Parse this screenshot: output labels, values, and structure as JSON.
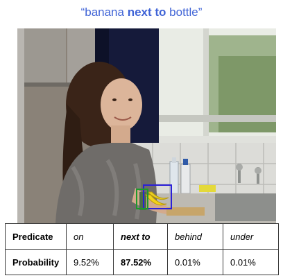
{
  "caption": {
    "open_quote": "“",
    "subject": "banana",
    "relation": "next to",
    "object": "bottle",
    "close_quote": "”"
  },
  "photo": {
    "boxes": [
      {
        "label": "banana",
        "color": "#2b1fd8"
      },
      {
        "label": "bottle",
        "color": "#1d9a2b"
      }
    ]
  },
  "table": {
    "row_headers": [
      "Predicate",
      "Probability"
    ],
    "predicates": [
      "on",
      "next to",
      "behind",
      "under"
    ],
    "probabilities": [
      "9.52%",
      "87.52%",
      "0.01%",
      "0.01%"
    ],
    "highlight_index": 1
  }
}
